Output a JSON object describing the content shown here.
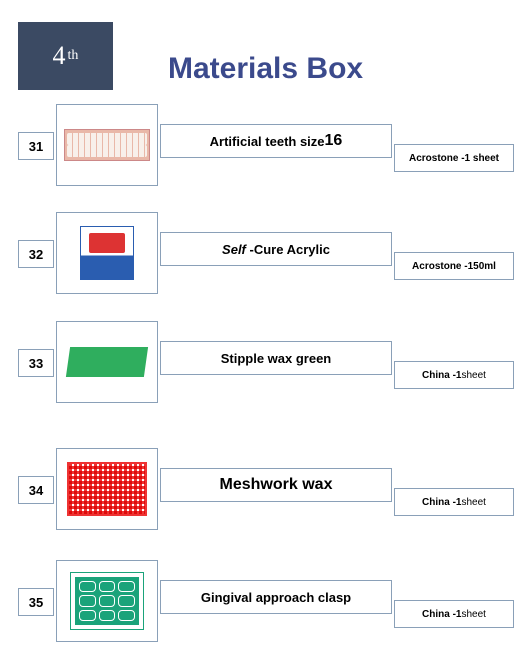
{
  "header": {
    "badge_number": "4",
    "badge_suffix": "th",
    "title": "Materials Box"
  },
  "rows": [
    {
      "number": "31",
      "name_html": "<b>Artificial teeth size</b> <b style='font-size:16px'>16</b>",
      "detail_html": "<b>Acrostone -1 sheet</b>",
      "img_type": "teeth"
    },
    {
      "number": "32",
      "name_html": "<b><i>Self</i> -</b> <b>Cure Acrylic</b>",
      "detail_html": "<b>Acrostone -150ml</b>",
      "img_type": "acrylic"
    },
    {
      "number": "33",
      "name_html": "<b>Stipple wax green</b>",
      "detail_html": "<b>China -1</b> sheet",
      "img_type": "greenwax"
    },
    {
      "number": "34",
      "name_html": "<b style='font-size:16px'>Meshwork wax</b>",
      "detail_html": "<b>China -1</b> sheet",
      "img_type": "mesh"
    },
    {
      "number": "35",
      "name_html": "<b>Gingival approach clasp</b>",
      "detail_html": "<b>China -1</b> sheet",
      "img_type": "clasp"
    }
  ],
  "layout": {
    "row_tops": [
      104,
      212,
      321,
      448,
      560
    ]
  }
}
